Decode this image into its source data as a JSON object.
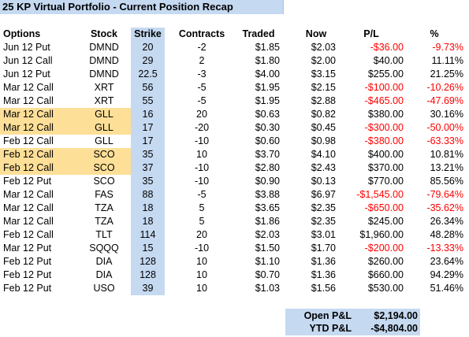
{
  "title": "25 KP Virtual Portfolio - Current Position Recap",
  "colors": {
    "header_blue": "#c5d9f1",
    "highlight": "#fddf98",
    "negative": "#ff0000"
  },
  "columns": {
    "option": "Options",
    "stock": "Stock",
    "strike": "Strike",
    "contracts": "Contracts",
    "traded": "Traded",
    "now": "Now",
    "pl": "P/L",
    "pct": "%"
  },
  "rows": [
    {
      "option": "Jun 12 Put",
      "stock": "DMND",
      "strike": "20",
      "contracts": "-2",
      "traded": "$1.85",
      "now": "$2.03",
      "pl": "-$36.00",
      "pct": "-9.73%",
      "negative": true,
      "highlight": false
    },
    {
      "option": "Jun 12 Call",
      "stock": "DMND",
      "strike": "29",
      "contracts": "2",
      "traded": "$1.80",
      "now": "$2.00",
      "pl": "$40.00",
      "pct": "11.11%",
      "negative": false,
      "highlight": false
    },
    {
      "option": "Jun 12 Put",
      "stock": "DMND",
      "strike": "22.5",
      "contracts": "-3",
      "traded": "$4.00",
      "now": "$3.15",
      "pl": "$255.00",
      "pct": "21.25%",
      "negative": false,
      "highlight": false
    },
    {
      "option": "Mar 12 Call",
      "stock": "XRT",
      "strike": "56",
      "contracts": "-5",
      "traded": "$1.95",
      "now": "$2.15",
      "pl": "-$100.00",
      "pct": "-10.26%",
      "negative": true,
      "highlight": false
    },
    {
      "option": "Mar 12 Call",
      "stock": "XRT",
      "strike": "55",
      "contracts": "-5",
      "traded": "$1.95",
      "now": "$2.88",
      "pl": "-$465.00",
      "pct": "-47.69%",
      "negative": true,
      "highlight": false
    },
    {
      "option": "Mar 12 Call",
      "stock": "GLL",
      "strike": "16",
      "contracts": "20",
      "traded": "$0.63",
      "now": "$0.82",
      "pl": "$380.00",
      "pct": "30.16%",
      "negative": false,
      "highlight": true
    },
    {
      "option": "Mar 12 Call",
      "stock": "GLL",
      "strike": "17",
      "contracts": "-20",
      "traded": "$0.30",
      "now": "$0.45",
      "pl": "-$300.00",
      "pct": "-50.00%",
      "negative": true,
      "highlight": true
    },
    {
      "option": "Feb 12 Call",
      "stock": "GLL",
      "strike": "17",
      "contracts": "-10",
      "traded": "$0.60",
      "now": "$0.98",
      "pl": "-$380.00",
      "pct": "-63.33%",
      "negative": true,
      "highlight": false
    },
    {
      "option": "Feb 12 Call",
      "stock": "SCO",
      "strike": "35",
      "contracts": "10",
      "traded": "$3.70",
      "now": "$4.10",
      "pl": "$400.00",
      "pct": "10.81%",
      "negative": false,
      "highlight": true
    },
    {
      "option": "Feb 12 Call",
      "stock": "SCO",
      "strike": "37",
      "contracts": "-10",
      "traded": "$2.80",
      "now": "$2.43",
      "pl": "$370.00",
      "pct": "13.21%",
      "negative": false,
      "highlight": true
    },
    {
      "option": "Feb 12 Put",
      "stock": "SCO",
      "strike": "35",
      "contracts": "-10",
      "traded": "$0.90",
      "now": "$0.13",
      "pl": "$770.00",
      "pct": "85.56%",
      "negative": false,
      "highlight": false
    },
    {
      "option": "Mar 12 Call",
      "stock": "FAS",
      "strike": "88",
      "contracts": "-5",
      "traded": "$3.88",
      "now": "$6.97",
      "pl": "-$1,545.00",
      "pct": "-79.64%",
      "negative": true,
      "highlight": false
    },
    {
      "option": "Mar 12 Call",
      "stock": "TZA",
      "strike": "18",
      "contracts": "5",
      "traded": "$3.65",
      "now": "$2.35",
      "pl": "-$650.00",
      "pct": "-35.62%",
      "negative": true,
      "highlight": false
    },
    {
      "option": "Mar 12 Call",
      "stock": "TZA",
      "strike": "18",
      "contracts": "5",
      "traded": "$1.86",
      "now": "$2.35",
      "pl": "$245.00",
      "pct": "26.34%",
      "negative": false,
      "highlight": false
    },
    {
      "option": "Feb 12 Call",
      "stock": "TLT",
      "strike": "114",
      "contracts": "20",
      "traded": "$2.03",
      "now": "$3.01",
      "pl": "$1,960.00",
      "pct": "48.28%",
      "negative": false,
      "highlight": false
    },
    {
      "option": "Mar 12 Put",
      "stock": "SQQQ",
      "strike": "15",
      "contracts": "-10",
      "traded": "$1.50",
      "now": "$1.70",
      "pl": "-$200.00",
      "pct": "-13.33%",
      "negative": true,
      "highlight": false
    },
    {
      "option": "Feb 12 Put",
      "stock": "DIA",
      "strike": "128",
      "contracts": "10",
      "traded": "$1.10",
      "now": "$1.36",
      "pl": "$260.00",
      "pct": "23.64%",
      "negative": false,
      "highlight": false
    },
    {
      "option": "Feb 12 Put",
      "stock": "DIA",
      "strike": "128",
      "contracts": "10",
      "traded": "$0.70",
      "now": "$1.36",
      "pl": "$660.00",
      "pct": "94.29%",
      "negative": false,
      "highlight": false
    },
    {
      "option": "Feb 12 Put",
      "stock": "USO",
      "strike": "39",
      "contracts": "10",
      "traded": "$1.03",
      "now": "$1.56",
      "pl": "$530.00",
      "pct": "51.46%",
      "negative": false,
      "highlight": false
    }
  ],
  "summary": {
    "open_label": "Open P&L",
    "open_value": "$2,194.00",
    "ytd_label": "YTD P&L",
    "ytd_value": "-$4,804.00"
  }
}
